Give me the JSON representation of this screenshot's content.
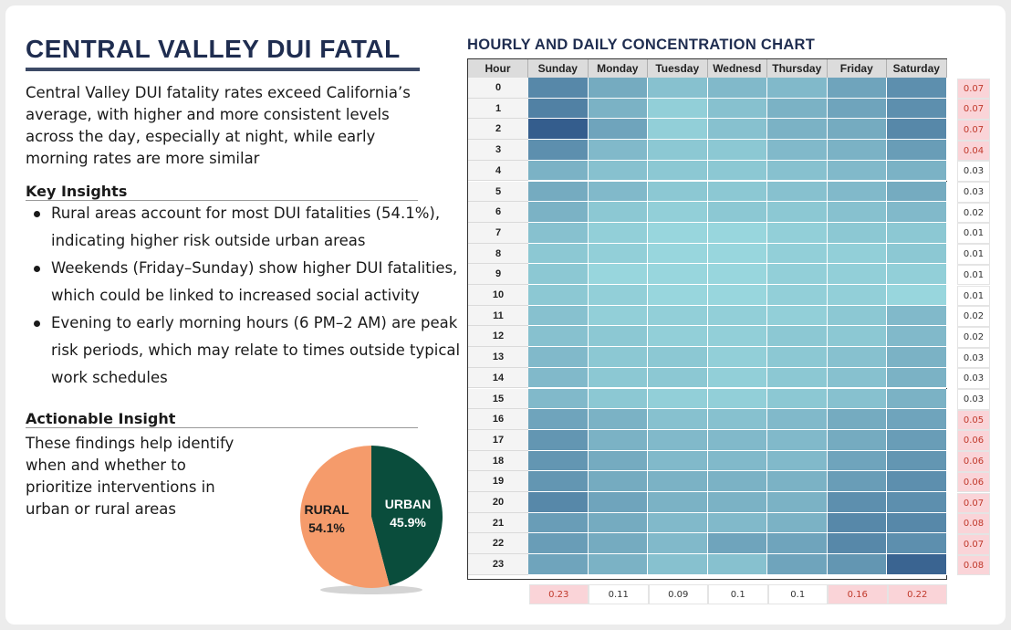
{
  "header": {
    "title": "CENTRAL VALLEY DUI FATAL",
    "intro": "Central Valley DUI fatality rates exceed California’s average, with higher and more consistent levels across the day, especially at night, while early morning rates are more similar"
  },
  "key_insights": {
    "heading": "Key Insights",
    "items": [
      "Rural areas account for most DUI fatalities (54.1%), indicating higher risk outside urban areas",
      "Weekends (Friday–Sunday) show higher DUI fatalities, which could be linked to increased social activity",
      "Evening to early morning hours (6 PM–2 AM) are peak risk periods, which may relate to times outside typical work schedules"
    ]
  },
  "actionable": {
    "heading": "Actionable Insight",
    "text": "These findings help identify when and whether to prioritize interventions in urban or rural areas"
  },
  "colors": {
    "urban": "#0a4d3c",
    "rural": "#f59b6b",
    "highlight": "#fad4d8",
    "heat_low": "#a4e4e6",
    "heat_high": "#2e5688"
  },
  "chart_data": [
    {
      "type": "pie",
      "categories": [
        "URBAN",
        "RURAL"
      ],
      "values": [
        45.9,
        54.1
      ],
      "labels": [
        "45.9%",
        "54.1%"
      ]
    },
    {
      "type": "heatmap",
      "title": "HOURLY AND DAILY CONCENTRATION CHART",
      "row_header": "Hour",
      "columns": [
        "Sunday",
        "Monday",
        "Tuesday",
        "Wednesd",
        "Thursday",
        "Friday",
        "Saturday"
      ],
      "rows": [
        "0",
        "1",
        "2",
        "3",
        "4",
        "5",
        "6",
        "7",
        "8",
        "9",
        "10",
        "11",
        "12",
        "13",
        "14",
        "15",
        "16",
        "17",
        "18",
        "19",
        "20",
        "21",
        "22",
        "23"
      ],
      "values": [
        [
          0.65,
          0.4,
          0.25,
          0.3,
          0.3,
          0.45,
          0.6
        ],
        [
          0.7,
          0.35,
          0.15,
          0.25,
          0.35,
          0.45,
          0.6
        ],
        [
          0.95,
          0.45,
          0.15,
          0.25,
          0.35,
          0.4,
          0.65
        ],
        [
          0.6,
          0.3,
          0.2,
          0.2,
          0.3,
          0.35,
          0.5
        ],
        [
          0.35,
          0.25,
          0.2,
          0.2,
          0.25,
          0.3,
          0.35
        ],
        [
          0.4,
          0.3,
          0.2,
          0.2,
          0.25,
          0.3,
          0.4
        ],
        [
          0.35,
          0.2,
          0.15,
          0.2,
          0.2,
          0.25,
          0.3
        ],
        [
          0.25,
          0.15,
          0.1,
          0.1,
          0.15,
          0.2,
          0.2
        ],
        [
          0.2,
          0.15,
          0.1,
          0.1,
          0.15,
          0.15,
          0.2
        ],
        [
          0.2,
          0.1,
          0.1,
          0.1,
          0.15,
          0.15,
          0.15
        ],
        [
          0.2,
          0.15,
          0.1,
          0.1,
          0.15,
          0.15,
          0.1
        ],
        [
          0.25,
          0.15,
          0.15,
          0.15,
          0.15,
          0.2,
          0.3
        ],
        [
          0.25,
          0.2,
          0.15,
          0.15,
          0.2,
          0.2,
          0.3
        ],
        [
          0.3,
          0.2,
          0.2,
          0.15,
          0.2,
          0.25,
          0.35
        ],
        [
          0.3,
          0.2,
          0.2,
          0.15,
          0.2,
          0.25,
          0.35
        ],
        [
          0.3,
          0.2,
          0.15,
          0.15,
          0.2,
          0.25,
          0.35
        ],
        [
          0.45,
          0.35,
          0.25,
          0.25,
          0.3,
          0.4,
          0.45
        ],
        [
          0.55,
          0.35,
          0.3,
          0.3,
          0.3,
          0.4,
          0.5
        ],
        [
          0.55,
          0.4,
          0.3,
          0.3,
          0.3,
          0.45,
          0.55
        ],
        [
          0.55,
          0.4,
          0.35,
          0.35,
          0.35,
          0.5,
          0.6
        ],
        [
          0.65,
          0.45,
          0.35,
          0.35,
          0.35,
          0.6,
          0.6
        ],
        [
          0.5,
          0.4,
          0.3,
          0.3,
          0.35,
          0.65,
          0.65
        ],
        [
          0.5,
          0.4,
          0.3,
          0.45,
          0.45,
          0.65,
          0.6
        ],
        [
          0.45,
          0.35,
          0.25,
          0.25,
          0.45,
          0.55,
          0.9
        ]
      ],
      "row_totals": [
        "0.07",
        "0.07",
        "0.07",
        "0.04",
        "0.03",
        "0.03",
        "0.02",
        "0.01",
        "0.01",
        "0.01",
        "0.01",
        "0.02",
        "0.02",
        "0.03",
        "0.03",
        "0.03",
        "0.05",
        "0.06",
        "0.06",
        "0.06",
        "0.07",
        "0.08",
        "0.07",
        "0.08"
      ],
      "row_highlight": [
        true,
        true,
        true,
        true,
        false,
        false,
        false,
        false,
        false,
        false,
        false,
        false,
        false,
        false,
        false,
        false,
        true,
        true,
        true,
        true,
        true,
        true,
        true,
        true
      ],
      "column_totals": [
        "0.23",
        "0.11",
        "0.09",
        "0.1",
        "0.1",
        "0.16",
        "0.22"
      ],
      "column_highlight": [
        true,
        false,
        false,
        false,
        false,
        true,
        true
      ]
    }
  ]
}
